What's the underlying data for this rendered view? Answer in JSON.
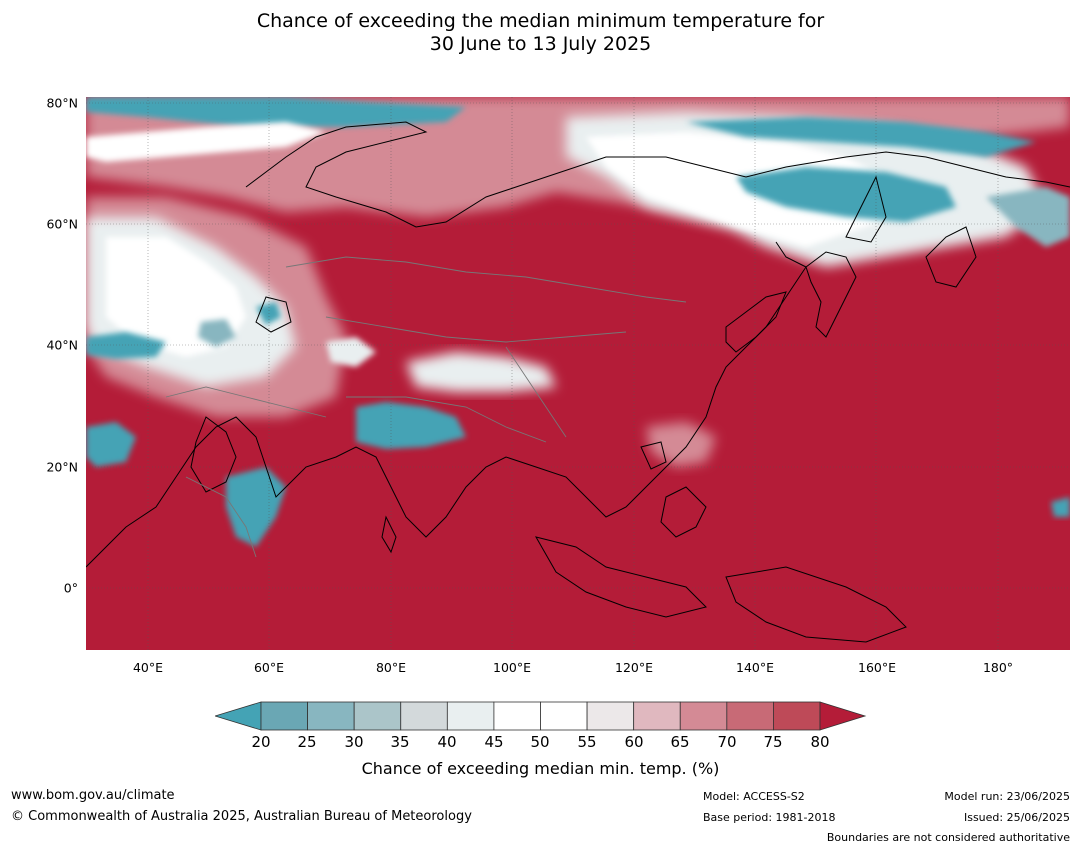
{
  "title": {
    "line1": "Chance of exceeding the median minimum temperature for",
    "line2": "30 June to 13 July 2025"
  },
  "map": {
    "region": "Asia",
    "background_color": "#b41c38",
    "lat_labels": [
      "80°N",
      "60°N",
      "40°N",
      "20°N",
      "0°"
    ],
    "lon_labels": [
      "40°E",
      "60°E",
      "80°E",
      "100°E",
      "120°E",
      "140°E",
      "160°E",
      "180°"
    ]
  },
  "colorbar": {
    "ticks": [
      "20",
      "25",
      "30",
      "35",
      "40",
      "45",
      "50",
      "55",
      "60",
      "65",
      "70",
      "75",
      "80"
    ],
    "colors": [
      "#44a3b5",
      "#6aa7b4",
      "#88b6c0",
      "#abc5c9",
      "#d3d9db",
      "#e9eff0",
      "#ffffff",
      "#ffffff",
      "#ece8e9",
      "#e0b8bf",
      "#d48a95",
      "#c86a76",
      "#be4a58",
      "#b41c38"
    ],
    "label": "Chance of exceeding median min. temp. (%)"
  },
  "footer": {
    "website": "www.bom.gov.au/climate",
    "copyright": "© Commonwealth of Australia 2025, Australian Bureau of Meteorology",
    "model": "Model: ACCESS-S2",
    "base_period": "Base period: 1981-2018",
    "model_run": "Model run: 23/06/2025",
    "issued": "Issued: 25/06/2025",
    "disclaimer": "Boundaries are not considered authoritative"
  }
}
